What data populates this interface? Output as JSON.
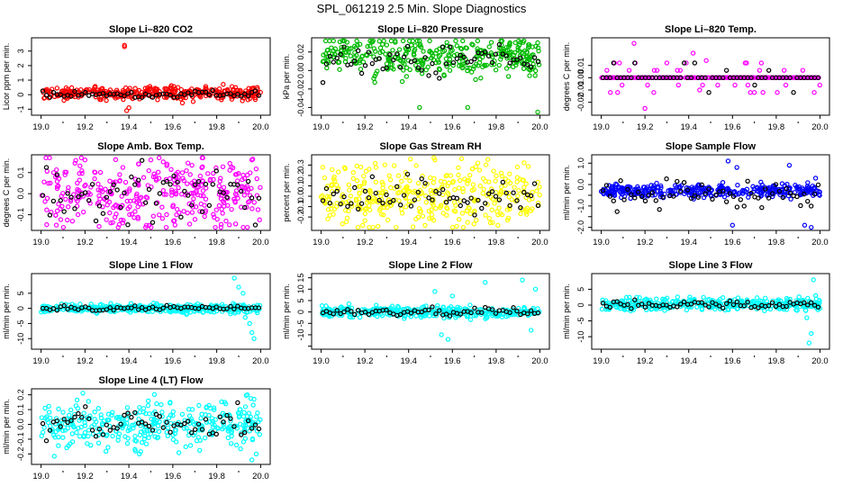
{
  "main_title": "SPL_061219  2.5 Min. Slope Diagnostics",
  "chart_data": [
    {
      "type": "scatter",
      "title": "Slope Li–820 CO2",
      "ylabel": "Licor ppm per min.",
      "color": "#ff0000",
      "xlim": [
        19.0,
        20.0
      ],
      "ylim": [
        -1.2,
        3.7
      ],
      "yticks": [
        -1,
        0,
        1,
        2,
        3
      ],
      "ytick_labels": [
        "-1",
        "0",
        "1",
        "2",
        "3"
      ],
      "xticks": [
        19.0,
        19.2,
        19.4,
        19.6,
        19.8,
        20.0
      ],
      "xtick_labels": [
        "19.0",
        "19.2",
        "19.4",
        "19.6",
        "19.8",
        "20.0"
      ],
      "gen": {
        "center": 0.1,
        "spread": 0.22,
        "black_center": 0.05,
        "black_spread": 0.12,
        "outliers": [
          [
            19.38,
            3.4
          ],
          [
            19.38,
            3.3
          ],
          [
            19.4,
            -0.9
          ],
          [
            19.39,
            -1.1
          ]
        ]
      }
    },
    {
      "type": "scatter",
      "title": "Slope Li–820 Pressure",
      "ylabel": "kPa per min.",
      "color": "#00bb00",
      "xlim": [
        19.0,
        20.0
      ],
      "ylim": [
        -0.045,
        0.032
      ],
      "yticks": [
        -0.04,
        -0.02,
        0.0,
        0.02
      ],
      "ytick_labels": [
        "-0.04",
        "-0.02",
        "0.00",
        "0.02"
      ],
      "xticks": [
        19.0,
        19.2,
        19.4,
        19.6,
        19.8,
        20.0
      ],
      "xtick_labels": [
        "19.0",
        "19.2",
        "19.4",
        "19.6",
        "19.8",
        "20.0"
      ],
      "gen": {
        "center": 0.016,
        "spread": 0.01,
        "black_center": 0.01,
        "black_spread": 0.01,
        "outliers": [
          [
            19.45,
            -0.04
          ],
          [
            19.67,
            -0.04
          ],
          [
            19.99,
            -0.045
          ],
          [
            19.99,
            0.03
          ]
        ]
      }
    },
    {
      "type": "scatter",
      "title": "Slope Li–820 Temp.",
      "ylabel": "degrees C per min.",
      "color": "#ff00ff",
      "xlim": [
        19.0,
        20.0
      ],
      "ylim": [
        -0.028,
        0.03
      ],
      "yticks": [
        -0.02,
        -0.01,
        0.0,
        0.01
      ],
      "ytick_labels": [
        "-0.02",
        "-0.01",
        "0.00",
        "0.01"
      ],
      "xticks": [
        19.0,
        19.2,
        19.4,
        19.6,
        19.8,
        20.0
      ],
      "xtick_labels": [
        "19.0",
        "19.2",
        "19.4",
        "19.6",
        "19.8",
        "20.0"
      ],
      "gen": {
        "center": 0.0,
        "spread": 0.0,
        "black_center": 0.0,
        "black_spread": 0.0,
        "quantized": 0.006,
        "outliers": [
          [
            19.15,
            0.028
          ],
          [
            19.2,
            -0.025
          ],
          [
            19.42,
            0.02
          ],
          [
            19.48,
            0.014
          ],
          [
            19.3,
            0.012
          ],
          [
            19.45,
            -0.01
          ],
          [
            19.7,
            -0.012
          ]
        ]
      }
    },
    {
      "type": "scatter",
      "title": "Slope Amb. Box Temp.",
      "ylabel": "degrees C per min.",
      "color": "#ff00ff",
      "xlim": [
        19.0,
        20.0
      ],
      "ylim": [
        -0.16,
        0.17
      ],
      "yticks": [
        -0.1,
        0.0,
        0.1
      ],
      "ytick_labels": [
        "-0.1",
        "0.0",
        "0.1"
      ],
      "xticks": [
        19.0,
        19.2,
        19.4,
        19.6,
        19.8,
        20.0
      ],
      "xtick_labels": [
        "19.0",
        "19.2",
        "19.4",
        "19.6",
        "19.8",
        "20.0"
      ],
      "gen": {
        "center": 0.0,
        "spread": 0.085,
        "black_center": -0.01,
        "black_spread": 0.06,
        "outliers": [
          [
            19.2,
            0.16
          ],
          [
            19.5,
            0.16
          ],
          [
            19.96,
            0.16
          ],
          [
            19.48,
            -0.15
          ]
        ]
      }
    },
    {
      "type": "scatter",
      "title": "Slope Gas Stream RH",
      "ylabel": "percent per min.",
      "color": "#ffff00",
      "xlim": [
        19.0,
        20.0
      ],
      "ylim": [
        -0.3,
        0.37
      ],
      "yticks": [
        -0.2,
        -0.1,
        0.0,
        0.1,
        0.2,
        0.3
      ],
      "ytick_labels": [
        "-0.2",
        "-0.1",
        "0.0",
        "0.1",
        "0.2",
        "0.3"
      ],
      "xticks": [
        19.0,
        19.2,
        19.4,
        19.6,
        19.8,
        20.0
      ],
      "xtick_labels": [
        "19.0",
        "19.2",
        "19.4",
        "19.6",
        "19.8",
        "20.0"
      ],
      "gen": {
        "center": 0.02,
        "spread": 0.14,
        "black_center": 0.0,
        "black_spread": 0.08,
        "outliers": [
          [
            19.52,
            0.35
          ],
          [
            19.19,
            -0.28
          ],
          [
            19.26,
            -0.29
          ]
        ]
      }
    },
    {
      "type": "scatter",
      "title": "Slope Sample Flow",
      "ylabel": "ml/min per min.",
      "color": "#0000ff",
      "xlim": [
        19.0,
        20.0
      ],
      "ylim": [
        -2.0,
        1.25
      ],
      "yticks": [
        -2.0,
        -1.5,
        -1.0,
        -0.5,
        0.0,
        0.5,
        1.0
      ],
      "ytick_labels": [
        "-2.0",
        "",
        "-1.0",
        "",
        "0.0",
        "",
        "1.0"
      ],
      "xticks": [
        19.0,
        19.2,
        19.4,
        19.6,
        19.8,
        20.0
      ],
      "xtick_labels": [
        "19.0",
        "19.2",
        "19.4",
        "19.6",
        "19.8",
        "20.0"
      ],
      "gen": {
        "center": -0.3,
        "spread": 0.15,
        "black_center": -0.5,
        "black_spread": 0.35,
        "outliers": [
          [
            19.58,
            1.1
          ],
          [
            19.62,
            0.8
          ],
          [
            19.86,
            0.9
          ],
          [
            19.93,
            -1.9
          ],
          [
            19.96,
            -2.0
          ],
          [
            19.6,
            -1.9
          ],
          [
            19.98,
            0.3
          ]
        ]
      }
    },
    {
      "type": "scatter",
      "title": "Slope Line 1 Flow",
      "ylabel": "ml/min per min.",
      "color": "#00ffff",
      "xlim": [
        19.0,
        20.0
      ],
      "ylim": [
        -12.5,
        10.5
      ],
      "yticks": [
        -10,
        -5,
        0,
        5
      ],
      "ytick_labels": [
        "-10",
        "-5",
        "0",
        "5"
      ],
      "xticks": [
        19.0,
        19.2,
        19.4,
        19.6,
        19.8,
        20.0
      ],
      "xtick_labels": [
        "19.0",
        "19.2",
        "19.4",
        "19.6",
        "19.8",
        "20.0"
      ],
      "gen": {
        "center": 0.0,
        "spread": 0.7,
        "black_center": 0.0,
        "black_spread": 0.4,
        "outliers": [
          [
            19.88,
            10.0
          ],
          [
            19.9,
            7.0
          ],
          [
            19.92,
            5.0
          ],
          [
            19.95,
            -5.0
          ],
          [
            19.96,
            -8.0
          ],
          [
            19.97,
            -10.0
          ],
          [
            19.93,
            -3.0
          ]
        ]
      }
    },
    {
      "type": "scatter",
      "title": "Slope Line 2 Flow",
      "ylabel": "ml/min per min.",
      "color": "#00ffff",
      "xlim": [
        19.0,
        20.0
      ],
      "ylim": [
        -15,
        15.5
      ],
      "yticks": [
        -15,
        -10,
        -5,
        0,
        5,
        10,
        15
      ],
      "ytick_labels": [
        "",
        "-10",
        "-5",
        "0",
        "5",
        "10",
        "15"
      ],
      "xticks": [
        19.0,
        19.2,
        19.4,
        19.6,
        19.8,
        20.0
      ],
      "xtick_labels": [
        "19.0",
        "19.2",
        "19.4",
        "19.6",
        "19.8",
        "20.0"
      ],
      "gen": {
        "center": 0.0,
        "spread": 1.2,
        "black_center": 0.0,
        "black_spread": 0.8,
        "outliers": [
          [
            19.52,
            9.0
          ],
          [
            19.55,
            -10.0
          ],
          [
            19.58,
            -12.0
          ],
          [
            19.6,
            7.0
          ],
          [
            19.75,
            13.0
          ],
          [
            19.92,
            14.0
          ],
          [
            19.96,
            -8.0
          ],
          [
            19.98,
            10.0
          ]
        ]
      }
    },
    {
      "type": "scatter",
      "title": "Slope Line 3 Flow",
      "ylabel": "ml/min per min.",
      "color": "#00ffff",
      "xlim": [
        19.0,
        20.0
      ],
      "ylim": [
        -13,
        9
      ],
      "yticks": [
        -10,
        -5,
        0,
        5
      ],
      "ytick_labels": [
        "-10",
        "-5",
        "0",
        "5"
      ],
      "xticks": [
        19.0,
        19.2,
        19.4,
        19.6,
        19.8,
        20.0
      ],
      "xtick_labels": [
        "19.0",
        "19.2",
        "19.4",
        "19.6",
        "19.8",
        "20.0"
      ],
      "gen": {
        "center": 0.3,
        "spread": 1.0,
        "black_center": 0.2,
        "black_spread": 0.6,
        "outliers": [
          [
            19.97,
            8.0
          ],
          [
            19.95,
            -12.0
          ],
          [
            19.96,
            -9.0
          ],
          [
            19.94,
            -4.0
          ],
          [
            19.98,
            3.0
          ]
        ]
      }
    },
    {
      "type": "scatter",
      "title": "Slope Line 4 (LT) Flow",
      "ylabel": "ml/min per min.",
      "color": "#00ffff",
      "xlim": [
        19.0,
        20.0
      ],
      "ylim": [
        -0.25,
        0.22
      ],
      "yticks": [
        -0.2,
        -0.1,
        0.0,
        0.1,
        0.2
      ],
      "ytick_labels": [
        "-0.2",
        "-0.1",
        "0.0",
        "0.1",
        "0.2"
      ],
      "xticks": [
        19.0,
        19.2,
        19.4,
        19.6,
        19.8,
        20.0
      ],
      "xtick_labels": [
        "19.0",
        "19.2",
        "19.4",
        "19.6",
        "19.8",
        "20.0"
      ],
      "gen": {
        "center": 0.0,
        "spread": 0.075,
        "black_center": 0.0,
        "black_spread": 0.05,
        "outliers": [
          [
            19.94,
            0.2
          ],
          [
            19.97,
            0.17
          ],
          [
            19.96,
            -0.24
          ],
          [
            19.98,
            -0.2
          ]
        ]
      }
    }
  ]
}
